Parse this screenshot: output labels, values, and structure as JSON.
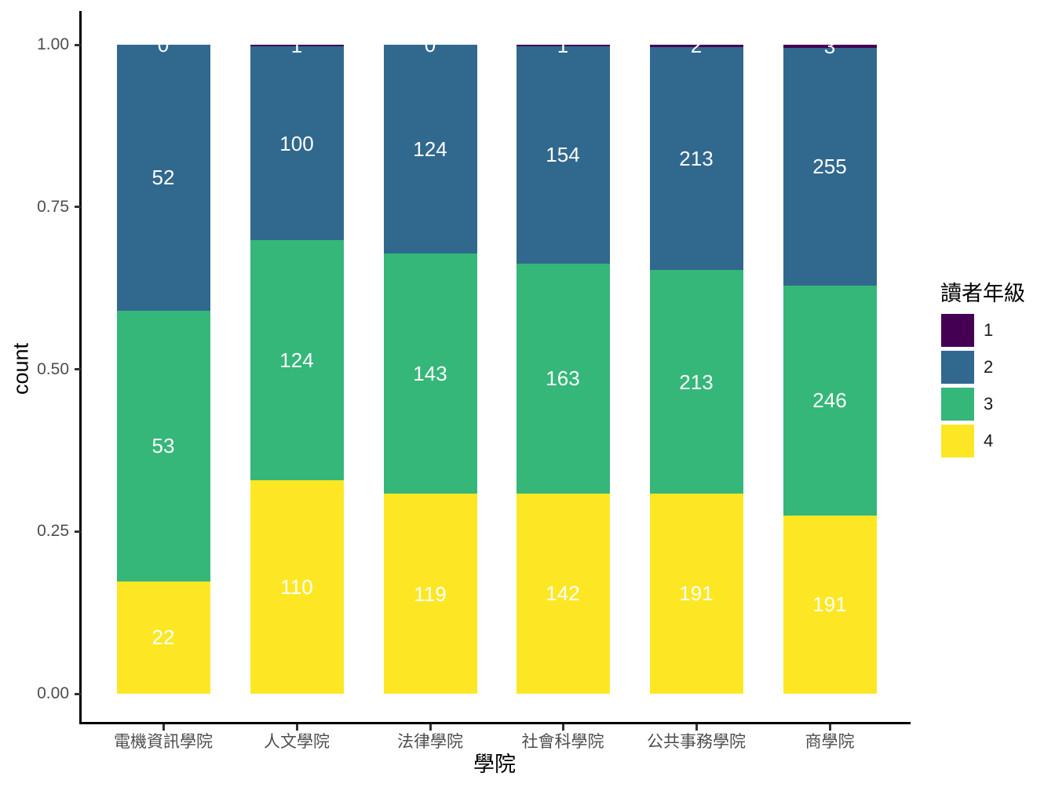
{
  "chart_data": {
    "type": "bar",
    "stacked": true,
    "normalized": "fill",
    "title": "",
    "xlabel": "學院",
    "ylabel": "count",
    "ylim": [
      0,
      1
    ],
    "grid": false,
    "categories": [
      "電機資訊學院",
      "人文學院",
      "法律學院",
      "社會科學院",
      "公共事務學院",
      "商學院"
    ],
    "series": [
      {
        "name": "1",
        "color": "#440154",
        "values": [
          0,
          1,
          0,
          1,
          2,
          3
        ]
      },
      {
        "name": "2",
        "color": "#31688E",
        "values": [
          52,
          100,
          124,
          154,
          213,
          255
        ]
      },
      {
        "name": "3",
        "color": "#35B779",
        "values": [
          53,
          124,
          143,
          163,
          213,
          246
        ]
      },
      {
        "name": "4",
        "color": "#FDE725",
        "values": [
          22,
          110,
          119,
          142,
          191,
          191
        ]
      }
    ],
    "y_ticks": [
      {
        "label": "0.00",
        "value": 0
      },
      {
        "label": "0.25",
        "value": 0.25
      },
      {
        "label": "0.50",
        "value": 0.5
      },
      {
        "label": "0.75",
        "value": 0.75
      },
      {
        "label": "1.00",
        "value": 1
      }
    ],
    "legend": {
      "title": "讀者年級",
      "position": "right",
      "entries": [
        "1",
        "2",
        "3",
        "4"
      ]
    },
    "bar_label_color": "#ffffff",
    "axis_text_color": "#4d4d4d"
  }
}
